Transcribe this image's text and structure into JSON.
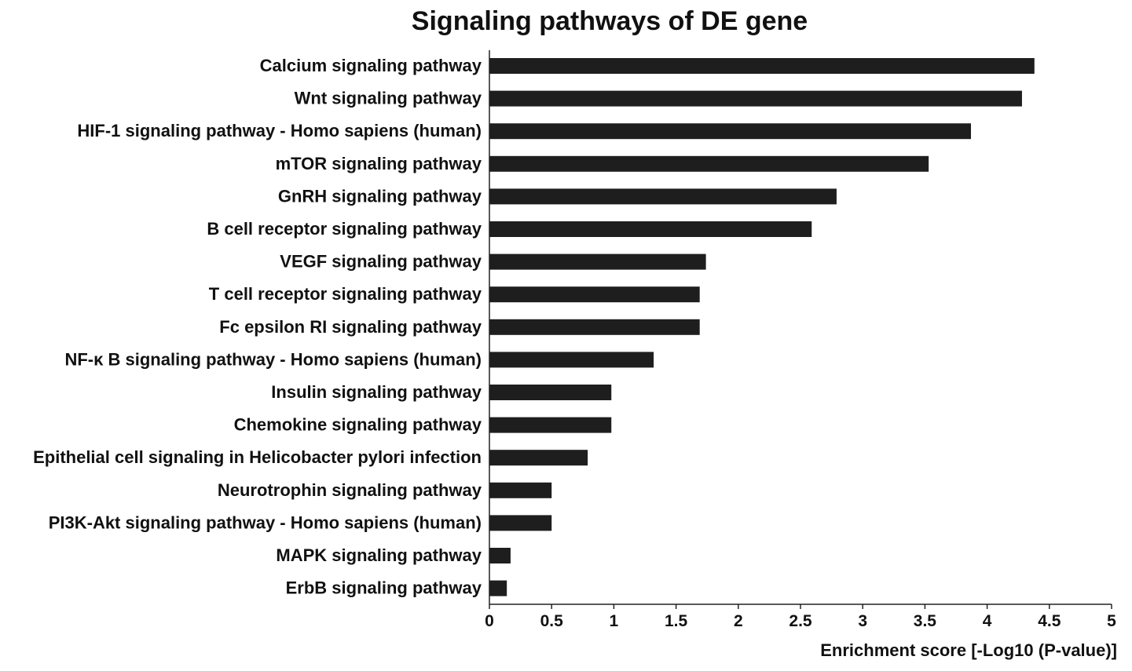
{
  "chart_data": {
    "type": "bar",
    "orientation": "horizontal",
    "title": "Signaling pathways of DE gene",
    "xlabel": "Enrichment score [-Log10 (P-value)]",
    "ylabel": "",
    "xlim": [
      0,
      5
    ],
    "xticks": [
      "0",
      "0.5",
      "1",
      "1.5",
      "2",
      "2.5",
      "3",
      "3.5",
      "4",
      "4.5",
      "5"
    ],
    "grid": false,
    "legend": "none",
    "bar_color": "#1e1e1e",
    "categories": [
      "Calcium signaling pathway",
      "Wnt signaling pathway",
      "HIF-1 signaling pathway - Homo sapiens (human)",
      "mTOR signaling pathway",
      "GnRH signaling pathway",
      "B cell receptor signaling pathway",
      "VEGF signaling pathway",
      "T cell receptor signaling pathway",
      "Fc epsilon RI signaling pathway",
      "NF-κ B signaling pathway - Homo sapiens (human)",
      "Insulin signaling pathway",
      "Chemokine signaling pathway",
      "Epithelial cell signaling in Helicobacter pylori infection",
      "Neurotrophin signaling pathway",
      "PI3K-Akt signaling pathway - Homo sapiens (human)",
      "MAPK signaling pathway",
      "ErbB signaling pathway"
    ],
    "values": [
      4.38,
      4.28,
      3.87,
      3.53,
      2.79,
      2.59,
      1.74,
      1.69,
      1.69,
      1.32,
      0.98,
      0.98,
      0.79,
      0.5,
      0.5,
      0.17,
      0.14
    ]
  }
}
